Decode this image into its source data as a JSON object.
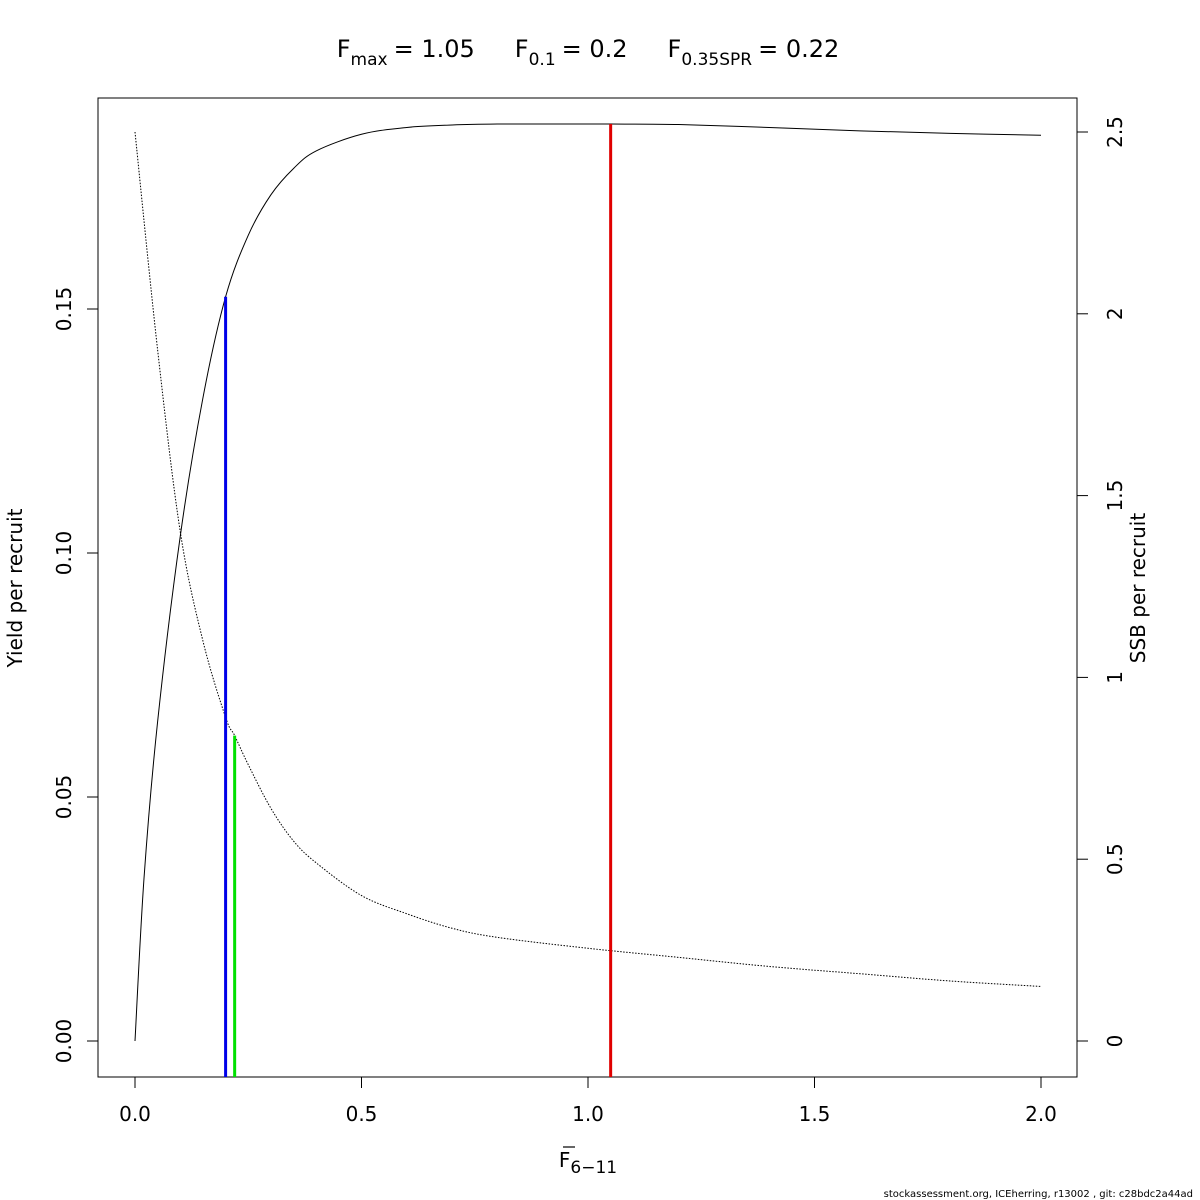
{
  "chart_data": {
    "type": "line",
    "title": {
      "fmax": {
        "base": "F",
        "sub": "max",
        "value": "= 1.05"
      },
      "f01": {
        "base": "F",
        "sub": "0.1",
        "value": "= 0.2"
      },
      "fspr": {
        "base": "F",
        "sub": "0.35SPR",
        "value": "= 0.22"
      }
    },
    "xlabel": {
      "base": "F",
      "sub": "6−11"
    },
    "ylabel_left": "Yield per recruit",
    "ylabel_right": "SSB per recruit",
    "xlim": [
      0,
      2
    ],
    "ylim_left": [
      0,
      0.19
    ],
    "ylim_right": [
      0,
      2.5
    ],
    "x_ticks": [
      "0.0",
      "0.5",
      "1.0",
      "1.5",
      "2.0"
    ],
    "y_left_ticks": [
      "0.00",
      "0.05",
      "0.10",
      "0.15"
    ],
    "y_right_ticks": [
      "0",
      "0.5",
      "1",
      "1.5",
      "2",
      "2.5"
    ],
    "series": [
      {
        "axis": "left",
        "style": "solid",
        "x": [
          0,
          0.02,
          0.05,
          0.1,
          0.15,
          0.2,
          0.25,
          0.3,
          0.35,
          0.4,
          0.5,
          0.6,
          0.7,
          0.8,
          0.9,
          1.0,
          1.05,
          1.2,
          1.4,
          1.6,
          1.8,
          2.0
        ],
        "y": [
          0,
          0.0335,
          0.0655,
          0.1035,
          0.1318,
          0.1525,
          0.1651,
          0.1734,
          0.1788,
          0.1824,
          0.1858,
          0.1872,
          0.1877,
          0.1879,
          0.1879,
          0.1879,
          0.1879,
          0.1878,
          0.1872,
          0.1865,
          0.186,
          0.1856
        ]
      },
      {
        "axis": "right",
        "style": "dotted",
        "x": [
          0,
          0.05,
          0.1,
          0.15,
          0.2,
          0.22,
          0.25,
          0.3,
          0.35,
          0.4,
          0.5,
          0.6,
          0.7,
          0.8,
          1.0,
          1.2,
          1.4,
          1.6,
          1.8,
          2.0
        ],
        "y": [
          2.5,
          1.9,
          1.4,
          1.1,
          0.89,
          0.84,
          0.76,
          0.64,
          0.55,
          0.49,
          0.4,
          0.35,
          0.31,
          0.285,
          0.255,
          0.23,
          0.205,
          0.185,
          0.165,
          0.15
        ]
      }
    ],
    "reference_lines": [
      {
        "name": "Fmax",
        "x": 1.05,
        "axis": "left",
        "y_top": 0.1879,
        "color": "#e00000"
      },
      {
        "name": "F0.1",
        "x": 0.2,
        "axis": "left",
        "y_top": 0.1525,
        "color": "#0000e8"
      },
      {
        "name": "F0.35SPR",
        "x": 0.22,
        "axis": "right",
        "y_top": 0.84,
        "color": "#00e000"
      }
    ],
    "grid": false,
    "legend": "none"
  },
  "footer_text": "stockassessment.org, ICEherring, r13002 , git: c28bdc2a44ad"
}
